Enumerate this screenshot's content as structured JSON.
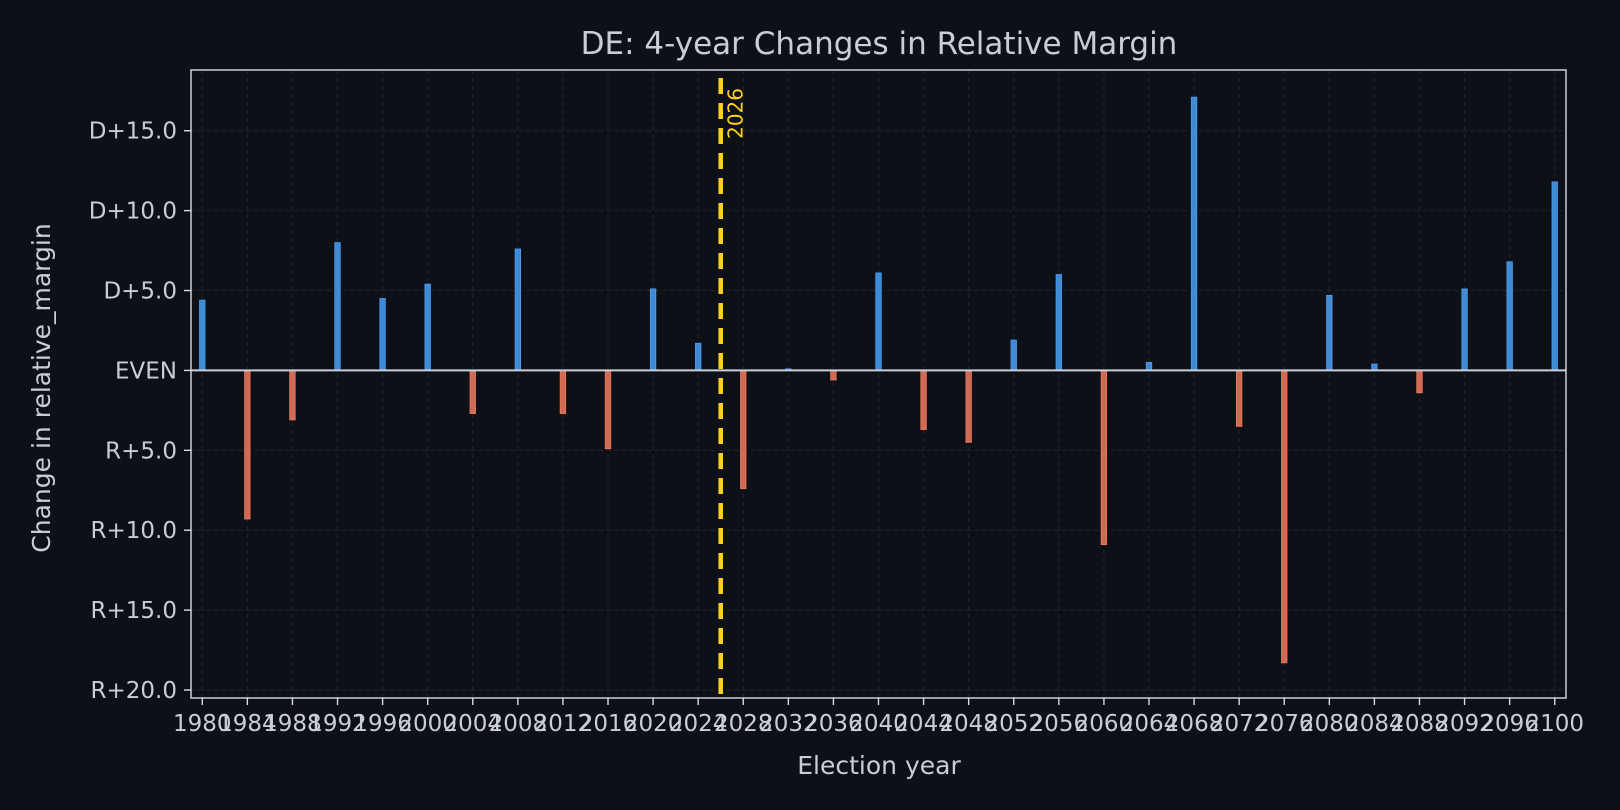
{
  "chart_data": {
    "type": "bar",
    "title": "DE: 4-year Changes in Relative Margin",
    "xlabel": "Election year",
    "ylabel": "Change in relative_margin",
    "ylim": [
      -20.5,
      18.8
    ],
    "xlim": [
      1979,
      2101
    ],
    "grid": true,
    "yticks": [
      {
        "value": 15,
        "label": "D+15.0"
      },
      {
        "value": 10,
        "label": "D+10.0"
      },
      {
        "value": 5,
        "label": "D+5.0"
      },
      {
        "value": 0,
        "label": "EVEN"
      },
      {
        "value": -5,
        "label": "R+5.0"
      },
      {
        "value": -10,
        "label": "R+10.0"
      },
      {
        "value": -15,
        "label": "R+15.0"
      },
      {
        "value": -20,
        "label": "R+20.0"
      }
    ],
    "xticks": [
      1980,
      1984,
      1988,
      1992,
      1996,
      2000,
      2004,
      2008,
      2012,
      2016,
      2020,
      2024,
      2028,
      2032,
      2036,
      2040,
      2044,
      2048,
      2052,
      2056,
      2060,
      2064,
      2068,
      2072,
      2076,
      2080,
      2084,
      2088,
      2092,
      2096,
      2100
    ],
    "x": [
      1980,
      1984,
      1988,
      1992,
      1996,
      2000,
      2004,
      2008,
      2012,
      2016,
      2020,
      2024,
      2028,
      2032,
      2036,
      2040,
      2044,
      2048,
      2052,
      2056,
      2060,
      2064,
      2068,
      2072,
      2076,
      2080,
      2084,
      2088,
      2092,
      2096,
      2100
    ],
    "values": [
      4.4,
      -9.3,
      -3.1,
      8.0,
      4.5,
      5.4,
      -2.7,
      7.6,
      -2.7,
      -4.9,
      5.1,
      1.7,
      -7.4,
      0.1,
      -0.6,
      6.1,
      -3.7,
      -4.5,
      1.9,
      6.0,
      -10.9,
      0.5,
      17.1,
      -3.5,
      -18.3,
      4.7,
      0.4,
      -1.4,
      5.1,
      6.8,
      11.8
    ],
    "positive_color": "#4a9ff5",
    "negative_color": "#f07a5e",
    "marker": {
      "x": 2026,
      "label": "2026",
      "color": "#ffd21f"
    }
  }
}
